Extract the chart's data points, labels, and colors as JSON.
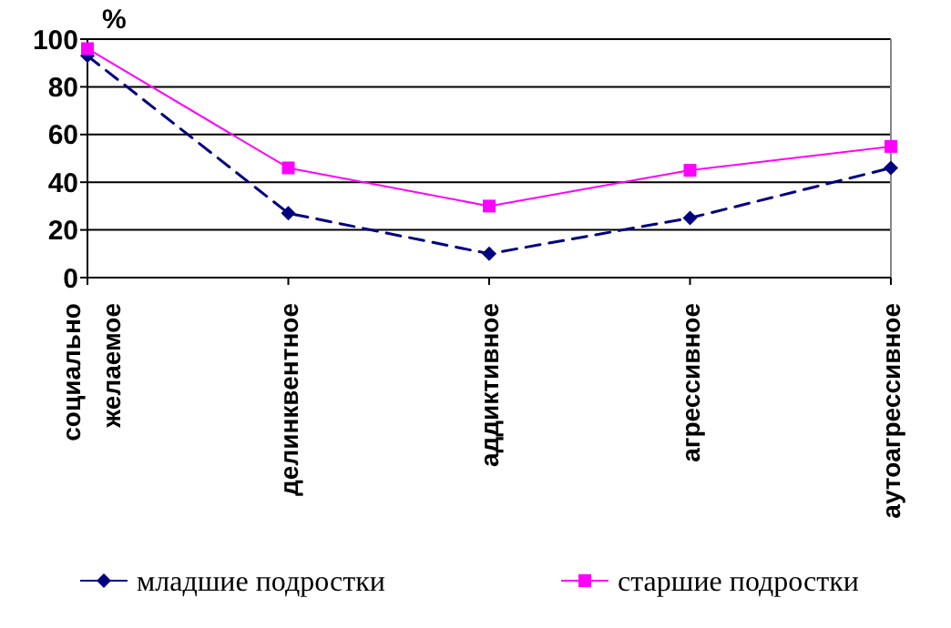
{
  "chart_data": {
    "type": "line",
    "ylabel": "%",
    "categories": [
      "социально желаемое",
      "делинквентное",
      "аддиктивное",
      "агрессивное",
      "аутоагрессивное"
    ],
    "series": [
      {
        "name": "младшие подростки",
        "color": "#000080",
        "values": [
          93,
          27,
          10,
          25,
          46
        ],
        "marker": "diamond",
        "line_style": "dashed"
      },
      {
        "name": "старшие подростки",
        "color": "#ff00ff",
        "values": [
          96,
          46,
          30,
          45,
          55
        ],
        "marker": "square",
        "line_style": "solid"
      }
    ],
    "ylim": [
      0,
      100
    ],
    "yticks": [
      0,
      20,
      40,
      60,
      80,
      100
    ],
    "grid": "y",
    "legend": "bottom"
  }
}
